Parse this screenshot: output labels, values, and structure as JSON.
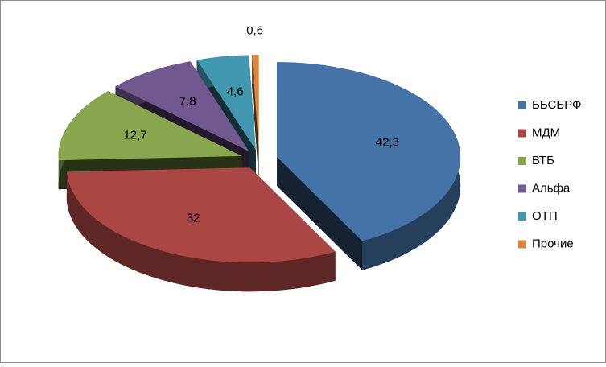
{
  "chart_data": {
    "type": "pie",
    "style": "3d-exploded",
    "categories": [
      "ББСБРФ",
      "МДМ",
      "ВТБ",
      "Альфа",
      "ОТП",
      "Прочие"
    ],
    "values": [
      42.3,
      32,
      12.7,
      7.8,
      4.6,
      0.6
    ],
    "value_labels": [
      "42,3",
      "32",
      "12,7",
      "7,8",
      "4,6",
      "0,6"
    ],
    "colors": [
      "#4572a7",
      "#aa4643",
      "#89a54e",
      "#71588f",
      "#4198af",
      "#db843d"
    ],
    "legend": "right"
  }
}
